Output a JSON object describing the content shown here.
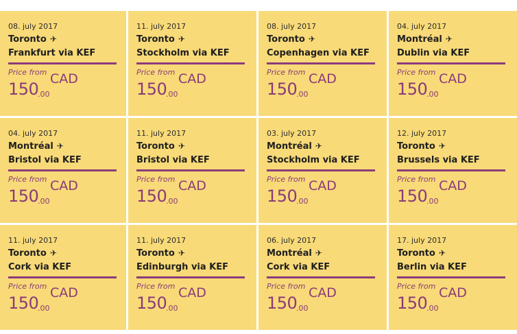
{
  "price_label": "Price from",
  "currency": "CAD",
  "plane_icon": "airplane-icon",
  "colors": {
    "card_background": "#f8da78",
    "accent": "#8c3b7c",
    "text": "#1e1e1e"
  },
  "deals": [
    {
      "date": "08. july 2017",
      "from": "Toronto",
      "to": "Frankfurt via KEF",
      "amount": "150",
      "cents": ".00"
    },
    {
      "date": "11. july 2017",
      "from": "Toronto",
      "to": "Stockholm via KEF",
      "amount": "150",
      "cents": ".00"
    },
    {
      "date": "08. july 2017",
      "from": "Toronto",
      "to": "Copenhagen via KEF",
      "amount": "150",
      "cents": ".00"
    },
    {
      "date": "04. july 2017",
      "from": "Montréal",
      "to": "Dublin via KEF",
      "amount": "150",
      "cents": ".00"
    },
    {
      "date": "04. july 2017",
      "from": "Montréal",
      "to": "Bristol via KEF",
      "amount": "150",
      "cents": ".00"
    },
    {
      "date": "11. july 2017",
      "from": "Toronto",
      "to": "Bristol via KEF",
      "amount": "150",
      "cents": ".00"
    },
    {
      "date": "03. july 2017",
      "from": "Montréal",
      "to": "Stockholm via KEF",
      "amount": "150",
      "cents": ".00"
    },
    {
      "date": "12. july 2017",
      "from": "Toronto",
      "to": "Brussels via KEF",
      "amount": "150",
      "cents": ".00"
    },
    {
      "date": "11. july 2017",
      "from": "Toronto",
      "to": "Cork via KEF",
      "amount": "150",
      "cents": ".00"
    },
    {
      "date": "11. july 2017",
      "from": "Toronto",
      "to": "Edinburgh via KEF",
      "amount": "150",
      "cents": ".00"
    },
    {
      "date": "06. july 2017",
      "from": "Montréal",
      "to": "Cork via KEF",
      "amount": "150",
      "cents": ".00"
    },
    {
      "date": "17. july 2017",
      "from": "Toronto",
      "to": "Berlin via KEF",
      "amount": "150",
      "cents": ".00"
    }
  ]
}
